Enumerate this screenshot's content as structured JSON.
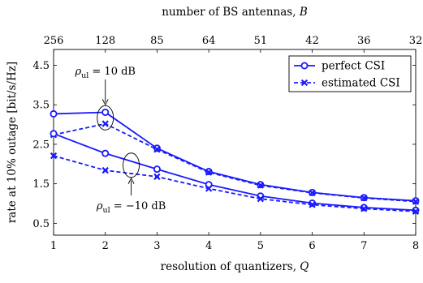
{
  "chart_data": {
    "type": "line",
    "xlabel": "resolution of quantizers, Q",
    "ylabel": "rate at 10% outage [bit/s/Hz]",
    "top_xlabel": "number of BS antennas, B",
    "x": [
      1,
      2,
      3,
      4,
      5,
      6,
      7,
      8
    ],
    "top_x_ticks": [
      "256",
      "128",
      "85",
      "64",
      "51",
      "42",
      "36",
      "32"
    ],
    "xlim": [
      1,
      8
    ],
    "ylim": [
      0.2,
      4.9
    ],
    "y_ticks": [
      0.5,
      1.5,
      2.5,
      3.5,
      4.5
    ],
    "grid": false,
    "legend_position": "top-right",
    "legend": [
      "perfect CSI",
      "estimated CSI"
    ],
    "colors": {
      "series": "#1a1aff"
    },
    "series": [
      {
        "name": "perfect CSI",
        "group": "ρul = 10 dB",
        "style": "solid",
        "marker": "circle",
        "values": [
          3.27,
          3.31,
          2.4,
          1.81,
          1.48,
          1.28,
          1.15,
          1.07
        ]
      },
      {
        "name": "estimated CSI",
        "group": "ρul = 10 dB",
        "style": "dashed",
        "marker": "x",
        "values": [
          2.74,
          3.02,
          2.37,
          1.79,
          1.46,
          1.27,
          1.14,
          1.05
        ]
      },
      {
        "name": "perfect CSI",
        "group": "ρul = −10 dB",
        "style": "solid",
        "marker": "circle",
        "values": [
          2.77,
          2.27,
          1.87,
          1.48,
          1.19,
          1.01,
          0.9,
          0.83
        ]
      },
      {
        "name": "estimated CSI",
        "group": "ρul = −10 dB",
        "style": "dashed",
        "marker": "x",
        "values": [
          2.21,
          1.84,
          1.68,
          1.38,
          1.12,
          0.97,
          0.87,
          0.8
        ]
      }
    ],
    "annotations": [
      {
        "text": "ρul = 10 dB",
        "target_x": 2,
        "target_y": 3.17
      },
      {
        "text": "ρul = −10 dB",
        "target_x": 2.5,
        "target_y": 1.97
      }
    ]
  }
}
